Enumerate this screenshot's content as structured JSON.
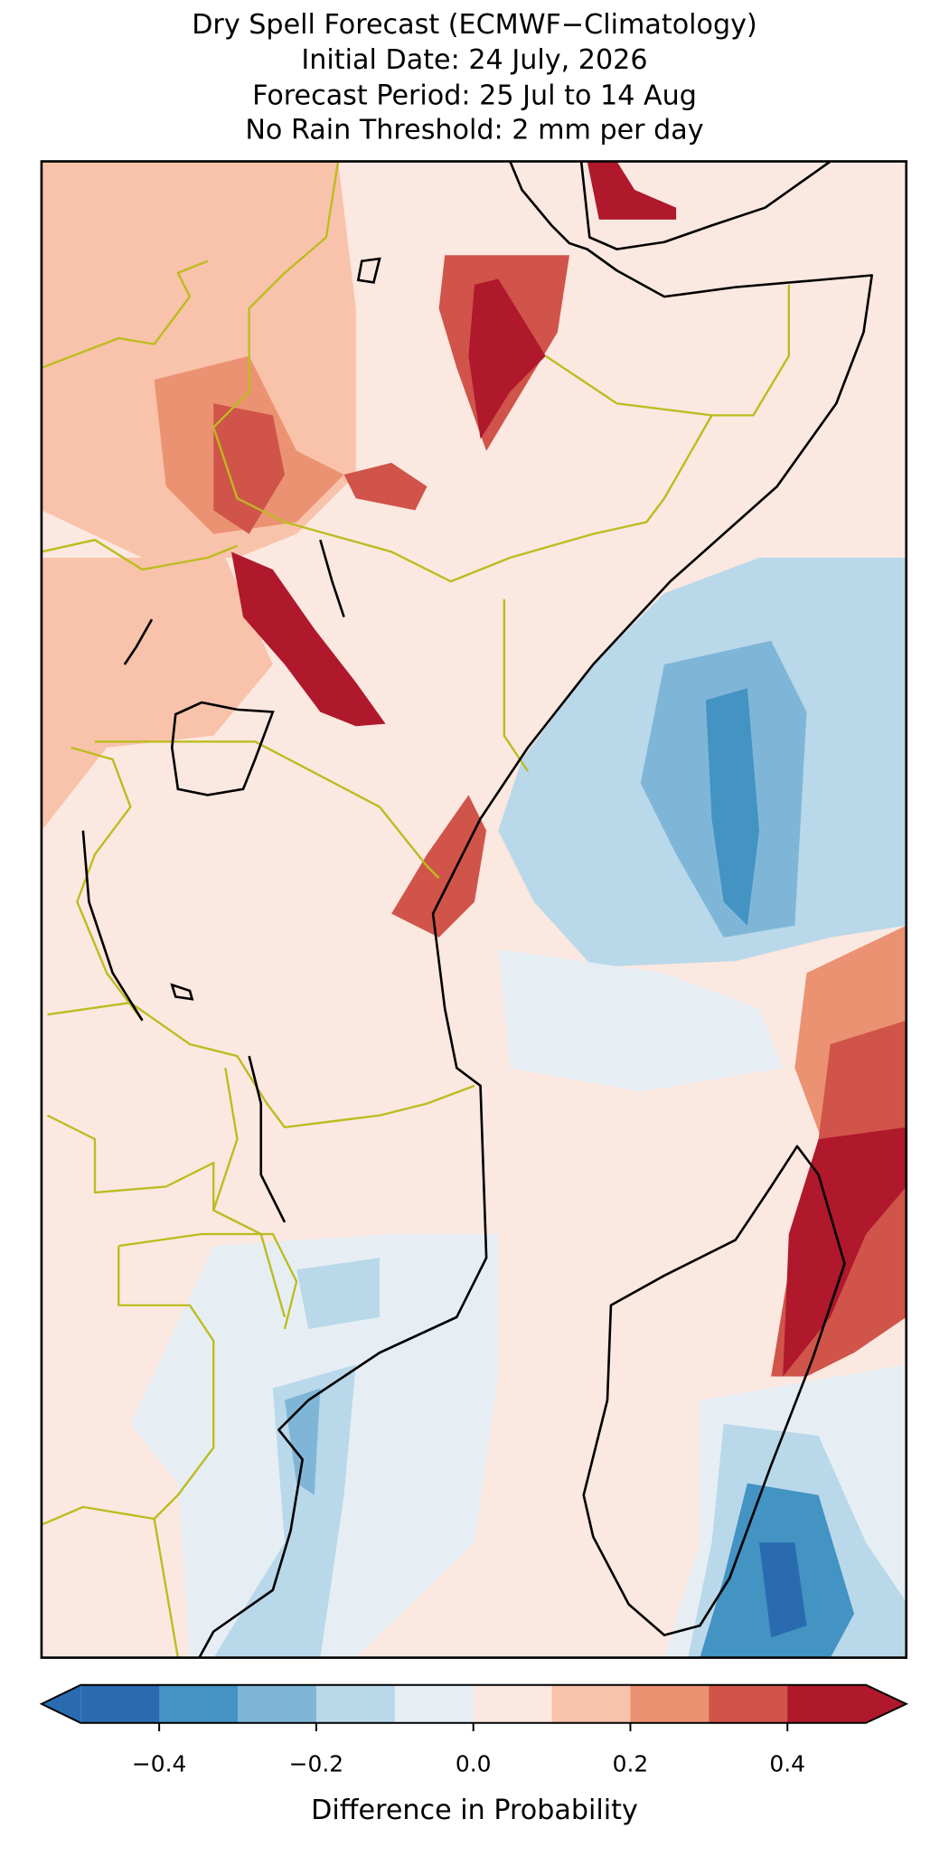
{
  "title": [
    "Dry Spell Forecast (ECMWF−Climatology)",
    "Initial Date: 24 July, 2026",
    "Forecast Period: 25 Jul to 14 Aug",
    "No Rain Threshold: 2 mm per day"
  ],
  "colorbar": {
    "label": "Difference in Probability",
    "extend": "both",
    "boundaries": [
      -0.5,
      -0.4,
      -0.3,
      -0.2,
      -0.1,
      0,
      0.1,
      0.2,
      0.3,
      0.4,
      0.5
    ],
    "colors": [
      "#2a6bb0",
      "#4393c3",
      "#7fb6d8",
      "#b9d8ea",
      "#e6eef4",
      "#fbe8e0",
      "#f8c3aa",
      "#eb9272",
      "#d05449",
      "#b0182c"
    ],
    "ticks": [
      {
        "value": -0.4,
        "label": "−0.4"
      },
      {
        "value": -0.2,
        "label": "−0.2"
      },
      {
        "value": 0,
        "label": "0.0"
      },
      0.2,
      0.4
    ]
  }
}
